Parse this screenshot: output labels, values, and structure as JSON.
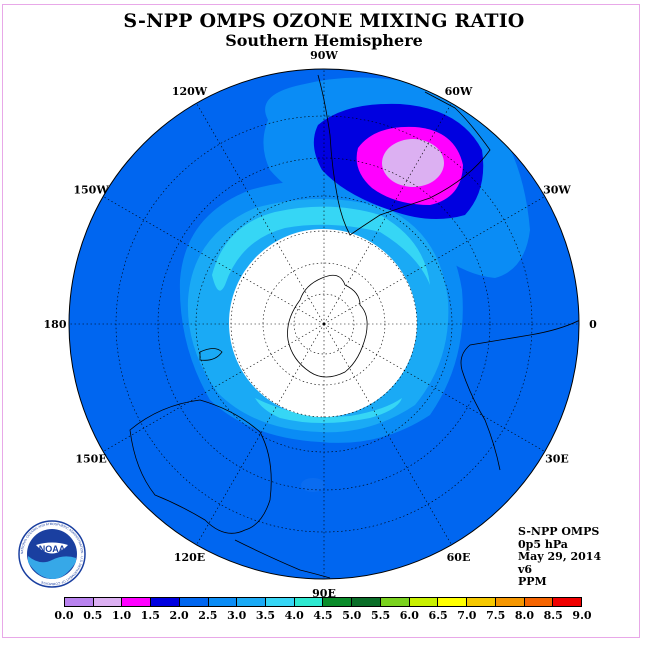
{
  "title": "S-NPP OMPS OZONE MIXING RATIO",
  "subtitle": "Southern Hemisphere",
  "logo": {
    "text": "NOAA",
    "ring_text": "NATIONAL OCEANIC AND ATMOSPHERIC ADMINISTRATION · U.S. DEPARTMENT OF COMMERCE"
  },
  "info": {
    "instrument": "S-NPP OMPS",
    "level": "0p5 hPa",
    "date": "May 29, 2014",
    "version": "v6",
    "units": "PPM"
  },
  "longitude_labels": [
    {
      "text": "90W",
      "lon": -90
    },
    {
      "text": "60W",
      "lon": -60
    },
    {
      "text": "30W",
      "lon": -30
    },
    {
      "text": "0",
      "lon": 0
    },
    {
      "text": "30E",
      "lon": 30
    },
    {
      "text": "60E",
      "lon": 60
    },
    {
      "text": "90E",
      "lon": 90
    },
    {
      "text": "120E",
      "lon": 120
    },
    {
      "text": "150E",
      "lon": 150
    },
    {
      "text": "180",
      "lon": 180
    },
    {
      "text": "150W",
      "lon": -150
    },
    {
      "text": "120W",
      "lon": -120
    }
  ],
  "colorbar": {
    "ticks": [
      "0.0",
      "0.5",
      "1.0",
      "1.5",
      "2.0",
      "2.5",
      "3.0",
      "3.5",
      "4.0",
      "4.5",
      "5.0",
      "5.5",
      "6.0",
      "6.5",
      "7.0",
      "7.5",
      "8.0",
      "8.5",
      "9.0"
    ],
    "colors": [
      "#b983ef",
      "#dcb0f2",
      "#ff00ff",
      "#0000e0",
      "#0066f0",
      "#0a8cf5",
      "#1aaaf5",
      "#36d6f5",
      "#2ee8d0",
      "#0a8c2a",
      "#0a6e28",
      "#7ad21e",
      "#c8f000",
      "#ffff00",
      "#f5c800",
      "#f59600",
      "#f56400",
      "#f00000",
      "#7a4b32"
    ]
  },
  "map_data": {
    "projection": "south polar stereographic",
    "fields": [
      {
        "level": "2.0",
        "color": "#0066f0"
      },
      {
        "level": "2.5",
        "color": "#0a8cf5"
      },
      {
        "level": "3.0",
        "color": "#1aaaf5"
      },
      {
        "level": "3.5",
        "color": "#36d6f5"
      },
      {
        "level": "1.5",
        "color": "#0000e0"
      },
      {
        "level": "1.0",
        "color": "#ff00ff"
      },
      {
        "level": "0.5",
        "color": "#dcb0f2"
      }
    ]
  }
}
